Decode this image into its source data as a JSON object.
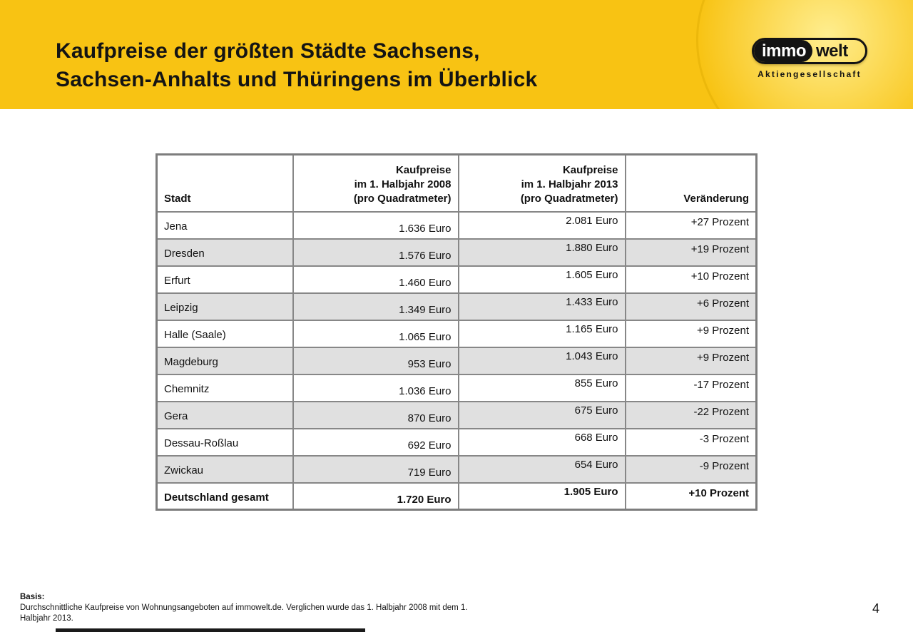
{
  "header": {
    "title_line1": "Kaufpreise der größten Städte Sachsens,",
    "title_line2": "Sachsen-Anhalts und Thüringens im Überblick",
    "band_color": "#F8C313"
  },
  "logo": {
    "part1": "immo",
    "part2": "welt",
    "subtitle": "Aktiengesellschaft"
  },
  "table": {
    "headers": [
      "Stadt",
      "Kaufpreise\nim 1. Halbjahr 2008\n(pro Quadratmeter)",
      "Kaufpreise\nim 1. Halbjahr 2013\n(pro Quadratmeter)",
      "Veränderung"
    ],
    "rows": [
      {
        "city": "Jena",
        "price_2008": "1.636 Euro",
        "price_2013": "2.081 Euro",
        "change": "+27 Prozent"
      },
      {
        "city": "Dresden",
        "price_2008": "1.576 Euro",
        "price_2013": "1.880 Euro",
        "change": "+19 Prozent"
      },
      {
        "city": "Erfurt",
        "price_2008": "1.460 Euro",
        "price_2013": "1.605 Euro",
        "change": "+10 Prozent"
      },
      {
        "city": "Leipzig",
        "price_2008": "1.349 Euro",
        "price_2013": "1.433 Euro",
        "change": "+6 Prozent"
      },
      {
        "city": "Halle (Saale)",
        "price_2008": "1.065 Euro",
        "price_2013": "1.165 Euro",
        "change": "+9 Prozent"
      },
      {
        "city": "Magdeburg",
        "price_2008": "953 Euro",
        "price_2013": "1.043 Euro",
        "change": "+9 Prozent"
      },
      {
        "city": "Chemnitz",
        "price_2008": "1.036 Euro",
        "price_2013": "855 Euro",
        "change": "-17 Prozent"
      },
      {
        "city": "Gera",
        "price_2008": "870 Euro",
        "price_2013": "675 Euro",
        "change": "-22 Prozent"
      },
      {
        "city": "Dessau-Roßlau",
        "price_2008": "692 Euro",
        "price_2013": "668 Euro",
        "change": "-3 Prozent"
      },
      {
        "city": "Zwickau",
        "price_2008": "719 Euro",
        "price_2013": "654 Euro",
        "change": "-9 Prozent"
      }
    ],
    "total_row": {
      "city": "Deutschland gesamt",
      "price_2008": "1.720 Euro",
      "price_2013": "1.905 Euro",
      "change": "+10 Prozent"
    }
  },
  "footer": {
    "basis_label": "Basis:",
    "basis_text": "Durchschnittliche Kaufpreise von Wohnungsangeboten auf immowelt.de. Verglichen wurde das 1. Halbjahr 2008 mit dem 1. Halbjahr 2013.",
    "page_number": "4"
  }
}
